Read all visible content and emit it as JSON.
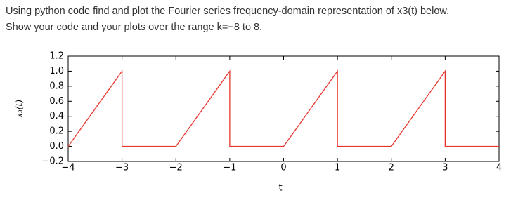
{
  "question": {
    "lines": [
      "Using python code find and plot the Fourier series frequency-domain representation of x3(t) below.",
      "Show your code and your plots over the range k=−8 to 8."
    ]
  },
  "chart_data": {
    "type": "line",
    "x_label": "t",
    "y_label": "x₃(t)",
    "x": [
      -4,
      -3,
      -3,
      -2,
      -1,
      -1,
      0,
      1,
      1,
      2,
      3,
      3,
      4
    ],
    "series": [
      {
        "color": "#e8342c",
        "values": [
          0,
          1,
          0,
          0,
          1,
          0,
          0,
          1,
          0,
          0,
          1,
          0,
          0
        ]
      }
    ],
    "xlim": [
      -4,
      4
    ],
    "xticks": [
      {
        "value": -4,
        "label": "−4"
      },
      {
        "value": -3,
        "label": "−3"
      },
      {
        "value": -2,
        "label": "−2"
      },
      {
        "value": -1,
        "label": "−1"
      },
      0,
      1,
      2,
      3,
      4
    ],
    "ylim": [
      -0.2,
      1.2
    ],
    "yticks": [
      {
        "value": -0.2,
        "label": "−0.2"
      },
      {
        "value": 0,
        "label": "0.0"
      },
      0.2,
      0.4,
      0.6,
      0.8,
      {
        "value": 1,
        "label": "1.0"
      },
      1.2
    ],
    "grid": false
  }
}
